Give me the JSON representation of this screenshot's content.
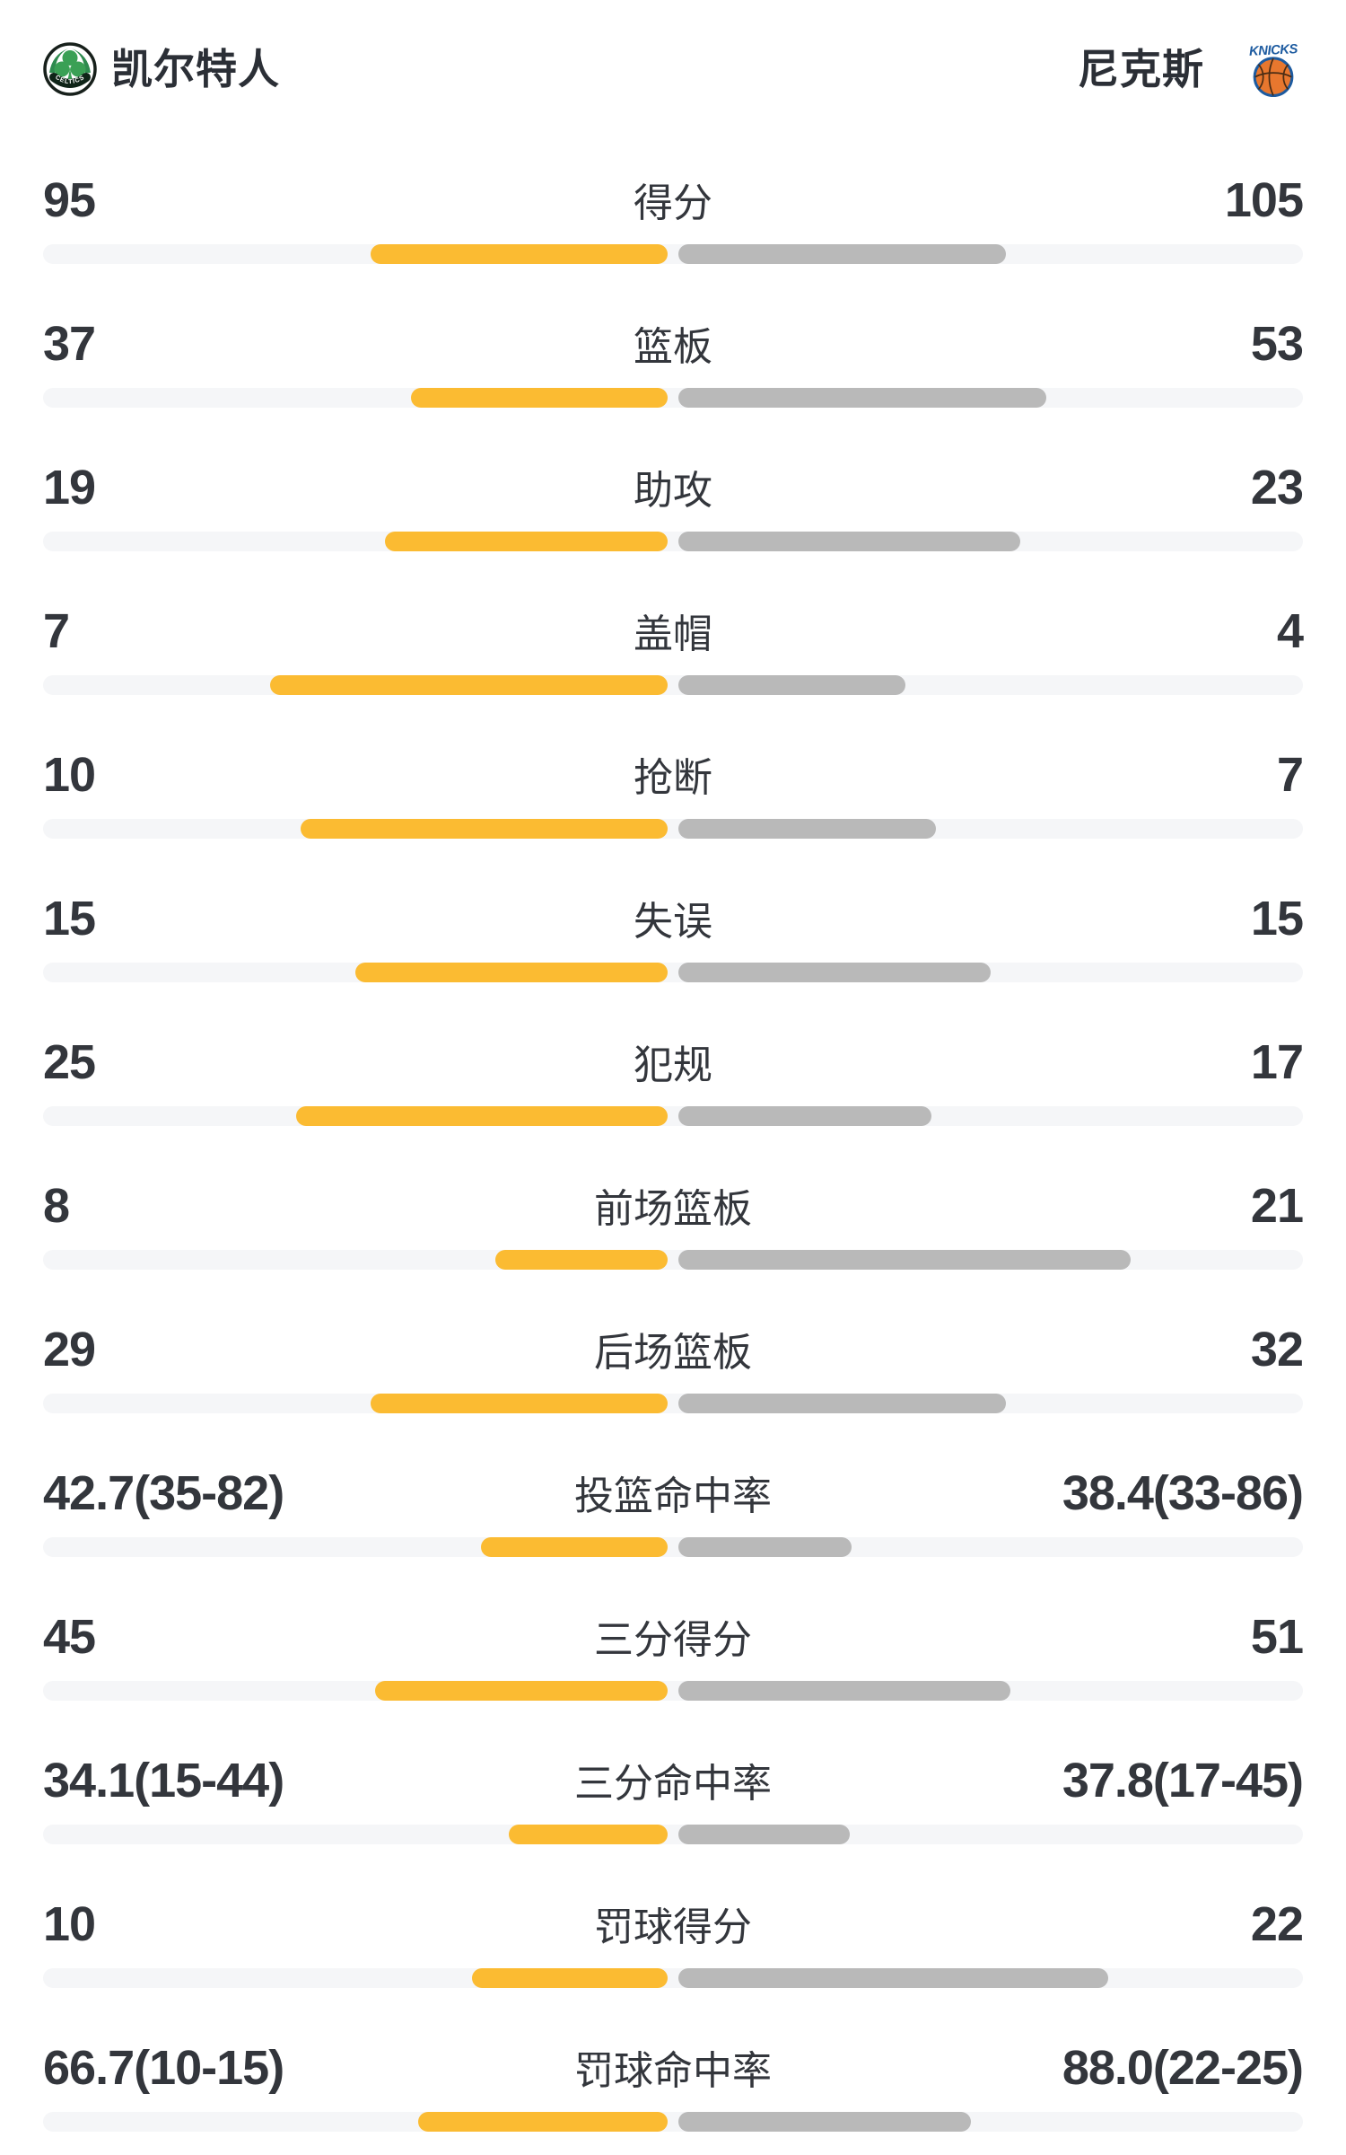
{
  "header": {
    "home_team": {
      "name": "凯尔特人",
      "logo": "celtics-logo",
      "logo_text": "CELTICS"
    },
    "away_team": {
      "name": "尼克斯",
      "logo": "knicks-logo",
      "logo_text": "KNICKS"
    }
  },
  "colors": {
    "home_bar": "#FBBB32",
    "away_bar": "#B9B9B9",
    "bar_track": "#F5F6F8",
    "text": "#33363C",
    "celtics_green": "#3AA055",
    "celtics_ring": "#17201B",
    "knicks_orange": "#E8772E",
    "knicks_blue": "#1D5BA0"
  },
  "chart_data": {
    "type": "bar",
    "subtype": "paired-horizontal-team-comparison",
    "legend_position": "none",
    "teams": [
      "凯尔特人",
      "尼克斯"
    ],
    "rows": [
      {
        "label": "得分",
        "home_display": "95",
        "away_display": "105",
        "home_value": 95,
        "away_value": 105,
        "is_percent": false
      },
      {
        "label": "篮板",
        "home_display": "37",
        "away_display": "53",
        "home_value": 37,
        "away_value": 53,
        "is_percent": false
      },
      {
        "label": "助攻",
        "home_display": "19",
        "away_display": "23",
        "home_value": 19,
        "away_value": 23,
        "is_percent": false
      },
      {
        "label": "盖帽",
        "home_display": "7",
        "away_display": "4",
        "home_value": 7,
        "away_value": 4,
        "is_percent": false
      },
      {
        "label": "抢断",
        "home_display": "10",
        "away_display": "7",
        "home_value": 10,
        "away_value": 7,
        "is_percent": false
      },
      {
        "label": "失误",
        "home_display": "15",
        "away_display": "15",
        "home_value": 15,
        "away_value": 15,
        "is_percent": false
      },
      {
        "label": "犯规",
        "home_display": "25",
        "away_display": "17",
        "home_value": 25,
        "away_value": 17,
        "is_percent": false
      },
      {
        "label": "前场篮板",
        "home_display": "8",
        "away_display": "21",
        "home_value": 8,
        "away_value": 21,
        "is_percent": false
      },
      {
        "label": "后场篮板",
        "home_display": "29",
        "away_display": "32",
        "home_value": 29,
        "away_value": 32,
        "is_percent": false
      },
      {
        "label": "投篮命中率",
        "home_display": "42.7(35-82)",
        "away_display": "38.4(33-86)",
        "home_value": 42.7,
        "away_value": 38.4,
        "is_percent": true
      },
      {
        "label": "三分得分",
        "home_display": "45",
        "away_display": "51",
        "home_value": 45,
        "away_value": 51,
        "is_percent": false
      },
      {
        "label": "三分命中率",
        "home_display": "34.1(15-44)",
        "away_display": "37.8(17-45)",
        "home_value": 34.1,
        "away_value": 37.8,
        "is_percent": true
      },
      {
        "label": "罚球得分",
        "home_display": "10",
        "away_display": "22",
        "home_value": 10,
        "away_value": 22,
        "is_percent": false
      },
      {
        "label": "罚球命中率",
        "home_display": "66.7(10-15)",
        "away_display": "88.0(22-25)",
        "home_value": 66.7,
        "away_value": 88.0,
        "is_percent": true
      }
    ]
  }
}
